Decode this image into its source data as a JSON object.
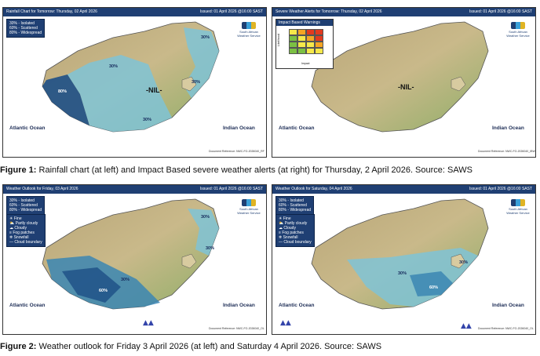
{
  "figure1": {
    "caption_label": "Figure 1:",
    "caption_text": " Rainfall chart (at left) and Impact Based severe weather alerts (at right) for Thursday, 2 April 2026. Source: SAWS",
    "left_map": {
      "title": "Rainfall Chart for Tomorrow: Thursday, 02 April 2026",
      "issued": "Issued: 01 April 2026 @16:00 SAST",
      "legend": [
        "30% - Isolated",
        "60% - Scattered",
        "80% - Widespread"
      ],
      "nil_label": "-NIL-",
      "percentages": [
        "80%",
        "30%",
        "30%",
        "30%",
        "30%",
        "30%"
      ],
      "ocean_left": "Atlantic Ocean",
      "ocean_right": "Indian Ocean",
      "doc_ref": "Document Reference: NWC-FO-2026040_RF"
    },
    "right_map": {
      "title": "Severe Weather Alerts for Tomorrow: Thursday, 02 April 2026",
      "issued": "Issued: 01 April 2026 @16:00 SAST",
      "matrix_title": "Impact Based Warnings",
      "likelihood_label": "Likelihood",
      "impact_label": "Impact",
      "nil_label": "-NIL-",
      "ocean_left": "Atlantic Ocean",
      "ocean_right": "Indian Ocean",
      "doc_ref": "Document Reference: NWC-FO-2026040_IBW"
    }
  },
  "figure2": {
    "caption_label": "Figure 2:",
    "caption_text": " Weather outlook for Friday 3 April 2026 (at left) and Saturday 4 April 2026. Source: SAWS",
    "left_map": {
      "title": "Weather Outlook for Friday, 03 April 2026",
      "issued": "Issued: 01 April 2026 @16:00 SAST",
      "legend": [
        "30% - Isolated",
        "60% - Scattered",
        "80% - Widespread"
      ],
      "symbols": [
        "Fine",
        "Partly cloudy",
        "Cloudy",
        "Fog patches",
        "Snowfall",
        "Cloud boundary"
      ],
      "percentages": [
        "60%",
        "30%",
        "30%",
        "30%"
      ],
      "ocean_left": "Atlantic Ocean",
      "ocean_right": "Indian Ocean",
      "doc_ref": "Document Reference: NWC-FO-2026040_OL"
    },
    "right_map": {
      "title": "Weather Outlook for Saturday, 04 April 2026",
      "issued": "Issued: 01 April 2026 @16:00 SAST",
      "legend": [
        "30% - Isolated",
        "60% - Scattered",
        "80% - Widespread"
      ],
      "symbols": [
        "Fine",
        "Partly cloudy",
        "Cloudy",
        "Fog patches",
        "Snowfall",
        "Cloud boundary"
      ],
      "percentages": [
        "30%",
        "60%",
        "30%"
      ],
      "ocean_left": "Atlantic Ocean",
      "ocean_right": "Indian Ocean",
      "doc_ref": "Document Reference: NWC-FO-2026040_OL"
    }
  },
  "logo_text": [
    "South African",
    "Weather Service"
  ],
  "colors": {
    "header": "#1f3f73",
    "land": "#c9b98a",
    "land_high": "#9b8a5a",
    "land_green": "#8fae68",
    "rain_light": "#7fc3d6",
    "rain_med": "#3b86b3",
    "rain_heavy": "#1d4f86"
  }
}
